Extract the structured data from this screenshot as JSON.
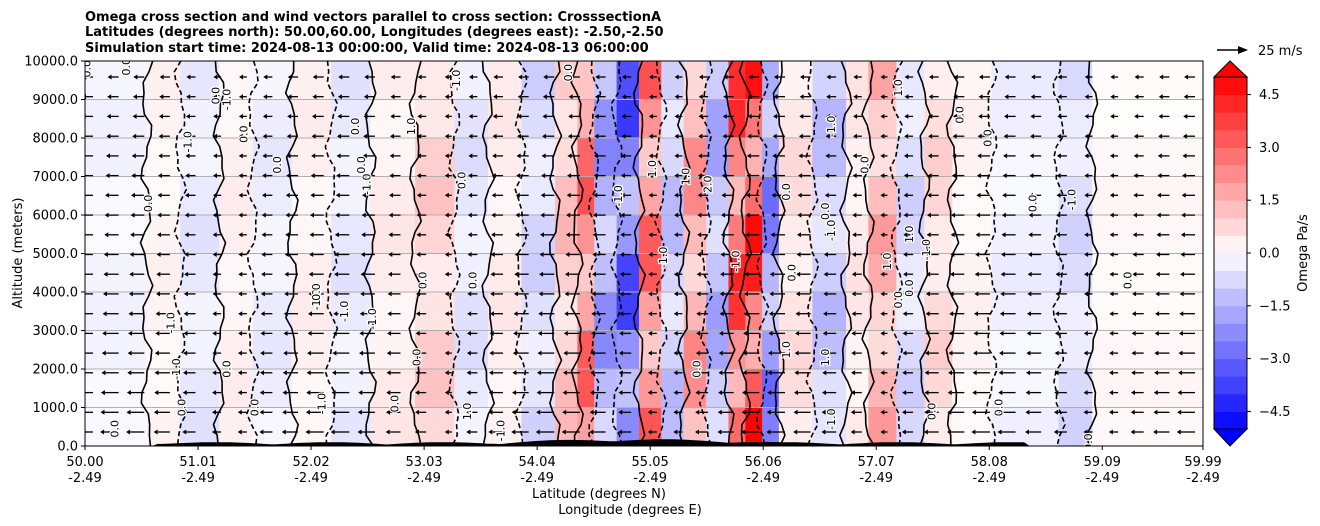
{
  "chart_data": {
    "type": "heatmap",
    "title_lines": [
      "Omega cross section and wind vectors parallel to cross section: CrosssectionA",
      "Latitudes (degrees north): 50.00,60.00, Longitudes (degrees east): -2.50,-2.50",
      "Simulation start time: 2024-08-13 00:00:00, Valid time: 2024-08-13 06:00:00"
    ],
    "xlabel_lines": [
      "Latitude (degrees N)",
      "Longitude (degrees E)"
    ],
    "ylabel": "Altitude (meters)",
    "colorbar_label": "Omega Pa/s",
    "vector_key_label": "25 m/s",
    "xlim": [
      50.0,
      59.99
    ],
    "ylim": [
      0,
      10000
    ],
    "x_ticks": [
      {
        "lat": "50.00",
        "lon": "-2.49",
        "value": 50.0
      },
      {
        "lat": "51.01",
        "lon": "-2.49",
        "value": 51.01
      },
      {
        "lat": "52.02",
        "lon": "-2.49",
        "value": 52.02
      },
      {
        "lat": "53.03",
        "lon": "-2.49",
        "value": 53.03
      },
      {
        "lat": "54.04",
        "lon": "-2.49",
        "value": 54.04
      },
      {
        "lat": "55.05",
        "lon": "-2.49",
        "value": 55.05
      },
      {
        "lat": "56.06",
        "lon": "-2.49",
        "value": 56.06
      },
      {
        "lat": "57.07",
        "lon": "-2.49",
        "value": 57.07
      },
      {
        "lat": "58.08",
        "lon": "-2.49",
        "value": 58.08
      },
      {
        "lat": "59.09",
        "lon": "-2.49",
        "value": 59.09
      },
      {
        "lat": "59.99",
        "lon": "-2.49",
        "value": 59.99
      }
    ],
    "y_ticks": [
      {
        "label": "0.0",
        "value": 0
      },
      {
        "label": "1000.0",
        "value": 1000
      },
      {
        "label": "2000.0",
        "value": 2000
      },
      {
        "label": "3000.0",
        "value": 3000
      },
      {
        "label": "4000.0",
        "value": 4000
      },
      {
        "label": "5000.0",
        "value": 5000
      },
      {
        "label": "6000.0",
        "value": 6000
      },
      {
        "label": "7000.0",
        "value": 7000
      },
      {
        "label": "8000.0",
        "value": 8000
      },
      {
        "label": "9000.0",
        "value": 9000
      },
      {
        "label": "10000.0",
        "value": 10000
      }
    ],
    "colorbar_ticks": [
      {
        "label": "4.5",
        "value": 4.5
      },
      {
        "label": "3.0",
        "value": 3.0
      },
      {
        "label": "1.5",
        "value": 1.5
      },
      {
        "label": "0.0",
        "value": 0.0
      },
      {
        "label": "−1.5",
        "value": -1.5
      },
      {
        "label": "−3.0",
        "value": -3.0
      },
      {
        "label": "−4.5",
        "value": -4.5
      }
    ],
    "colorbar_range": [
      -5.0,
      5.0
    ],
    "colorbar_extend": "both",
    "colormap": "bwr",
    "grid": "horizontal",
    "omega_bands": [
      {
        "x0": 50.0,
        "x1": 50.55,
        "value": -0.3
      },
      {
        "x0": 50.55,
        "x1": 50.85,
        "value": 0.3
      },
      {
        "x0": 50.85,
        "x1": 51.2,
        "value": -0.6
      },
      {
        "x0": 51.2,
        "x1": 51.5,
        "value": 0.4
      },
      {
        "x0": 51.5,
        "x1": 51.85,
        "value": -0.5
      },
      {
        "x0": 51.85,
        "x1": 52.2,
        "value": 0.4
      },
      {
        "x0": 52.2,
        "x1": 52.55,
        "value": -0.6
      },
      {
        "x0": 52.55,
        "x1": 52.95,
        "value": 0.5
      },
      {
        "x0": 52.95,
        "x1": 53.3,
        "value": 1.2
      },
      {
        "x0": 53.3,
        "x1": 53.6,
        "value": -0.7
      },
      {
        "x0": 53.6,
        "x1": 53.9,
        "value": 0.5
      },
      {
        "x0": 53.9,
        "x1": 54.2,
        "value": -1.0
      },
      {
        "x0": 54.2,
        "x1": 54.4,
        "value": 1.5
      },
      {
        "x0": 54.4,
        "x1": 54.55,
        "value": 3.5
      },
      {
        "x0": 54.55,
        "x1": 54.75,
        "value": -2.5
      },
      {
        "x0": 54.75,
        "x1": 54.95,
        "value": -4.0
      },
      {
        "x0": 54.95,
        "x1": 55.15,
        "value": 3.5
      },
      {
        "x0": 55.15,
        "x1": 55.35,
        "value": -1.5
      },
      {
        "x0": 55.35,
        "x1": 55.55,
        "value": 2.5
      },
      {
        "x0": 55.55,
        "x1": 55.75,
        "value": -2.0
      },
      {
        "x0": 55.75,
        "x1": 55.9,
        "value": 4.5
      },
      {
        "x0": 55.9,
        "x1": 56.05,
        "value": 5.0
      },
      {
        "x0": 56.05,
        "x1": 56.2,
        "value": -3.0
      },
      {
        "x0": 56.2,
        "x1": 56.5,
        "value": 0.8
      },
      {
        "x0": 56.5,
        "x1": 56.8,
        "value": -1.5
      },
      {
        "x0": 56.8,
        "x1": 57.0,
        "value": 0.6
      },
      {
        "x0": 57.0,
        "x1": 57.25,
        "value": 2.0
      },
      {
        "x0": 57.25,
        "x1": 57.5,
        "value": -1.0
      },
      {
        "x0": 57.5,
        "x1": 57.75,
        "value": 1.0
      },
      {
        "x0": 57.75,
        "x1": 58.1,
        "value": 0.3
      },
      {
        "x0": 58.1,
        "x1": 58.7,
        "value": -0.4
      },
      {
        "x0": 58.7,
        "x1": 59.0,
        "value": -0.9
      },
      {
        "x0": 59.0,
        "x1": 59.99,
        "value": 0.2
      }
    ],
    "contour_labels": [
      {
        "text": "0.0",
        "x": 50.05,
        "y": 9800
      },
      {
        "text": "0.0",
        "x": 50.4,
        "y": 9850
      },
      {
        "text": "0.0",
        "x": 50.6,
        "y": 6300
      },
      {
        "text": "-1.0",
        "x": 50.95,
        "y": 7900
      },
      {
        "text": "0.0",
        "x": 51.2,
        "y": 9100
      },
      {
        "text": "-1.0",
        "x": 51.3,
        "y": 9000
      },
      {
        "text": "0.0",
        "x": 51.45,
        "y": 8100
      },
      {
        "text": "0.0",
        "x": 51.75,
        "y": 7300
      },
      {
        "text": "-1.0",
        "x": 50.8,
        "y": 3200
      },
      {
        "text": "-1.0",
        "x": 50.85,
        "y": 2000
      },
      {
        "text": "0.0",
        "x": 50.9,
        "y": 1000
      },
      {
        "text": "0.0",
        "x": 50.3,
        "y": 450
      },
      {
        "text": "0.0",
        "x": 51.3,
        "y": 2000
      },
      {
        "text": "0.0",
        "x": 51.55,
        "y": 1000
      },
      {
        "text": "-1.0",
        "x": 52.1,
        "y": 3800
      },
      {
        "text": "0.0",
        "x": 52.1,
        "y": 4000
      },
      {
        "text": "-1.0",
        "x": 52.35,
        "y": 3500
      },
      {
        "text": "-1.0",
        "x": 52.15,
        "y": 1100
      },
      {
        "text": "0.0",
        "x": 52.45,
        "y": 8300
      },
      {
        "text": "0.0",
        "x": 52.5,
        "y": 7300
      },
      {
        "text": "-1.0",
        "x": 52.55,
        "y": 6800
      },
      {
        "text": "-1.0",
        "x": 52.6,
        "y": 3300
      },
      {
        "text": "1.0",
        "x": 52.95,
        "y": 8300
      },
      {
        "text": "0.0",
        "x": 52.8,
        "y": 1100
      },
      {
        "text": "0.0",
        "x": 53.0,
        "y": 2300
      },
      {
        "text": "0.0",
        "x": 53.05,
        "y": 4300
      },
      {
        "text": "-1.0",
        "x": 53.35,
        "y": 9500
      },
      {
        "text": "0.0",
        "x": 53.4,
        "y": 6900
      },
      {
        "text": "0.0",
        "x": 53.5,
        "y": 4300
      },
      {
        "text": "1.0",
        "x": 53.45,
        "y": 900
      },
      {
        "text": "-1.0",
        "x": 53.75,
        "y": 400
      },
      {
        "text": "0.0",
        "x": 54.35,
        "y": 9700
      },
      {
        "text": "-1.0",
        "x": 54.8,
        "y": 6500
      },
      {
        "text": "1.0",
        "x": 55.1,
        "y": 7200
      },
      {
        "text": "1.0",
        "x": 55.4,
        "y": 7000
      },
      {
        "text": "2.0",
        "x": 55.6,
        "y": 6800
      },
      {
        "text": "-1.0",
        "x": 55.2,
        "y": 4900
      },
      {
        "text": "0.0",
        "x": 55.5,
        "y": 2000
      },
      {
        "text": "-1.0",
        "x": 55.85,
        "y": 4800
      },
      {
        "text": "0.0",
        "x": 56.3,
        "y": 6600
      },
      {
        "text": "0.0",
        "x": 56.35,
        "y": 4500
      },
      {
        "text": "1.0",
        "x": 56.3,
        "y": 2500
      },
      {
        "text": "1.0",
        "x": 56.65,
        "y": 2300
      },
      {
        "text": "-1.0",
        "x": 56.7,
        "y": 8300
      },
      {
        "text": "0.0",
        "x": 56.65,
        "y": 6100
      },
      {
        "text": "-1.0",
        "x": 56.7,
        "y": 5600
      },
      {
        "text": "-1.0",
        "x": 56.7,
        "y": 700
      },
      {
        "text": "0.0",
        "x": 57.0,
        "y": 7300
      },
      {
        "text": "1.0",
        "x": 57.3,
        "y": 9300
      },
      {
        "text": "1.0",
        "x": 57.2,
        "y": 4800
      },
      {
        "text": "0.0",
        "x": 57.3,
        "y": 3800
      },
      {
        "text": "1.0",
        "x": 57.4,
        "y": 5500
      },
      {
        "text": "0.0",
        "x": 57.4,
        "y": 4100
      },
      {
        "text": "-1.0",
        "x": 57.55,
        "y": 5100
      },
      {
        "text": "0.0",
        "x": 57.6,
        "y": 900
      },
      {
        "text": "0.0",
        "x": 57.85,
        "y": 8600
      },
      {
        "text": "0.0",
        "x": 58.1,
        "y": 8000
      },
      {
        "text": "0.0",
        "x": 58.2,
        "y": 1000
      },
      {
        "text": "0.0",
        "x": 58.5,
        "y": 6300
      },
      {
        "text": "-1.0",
        "x": 58.85,
        "y": 6400
      },
      {
        "text": "0.0",
        "x": 59.0,
        "y": 100
      },
      {
        "text": "0.0",
        "x": 59.35,
        "y": 4300
      }
    ]
  }
}
